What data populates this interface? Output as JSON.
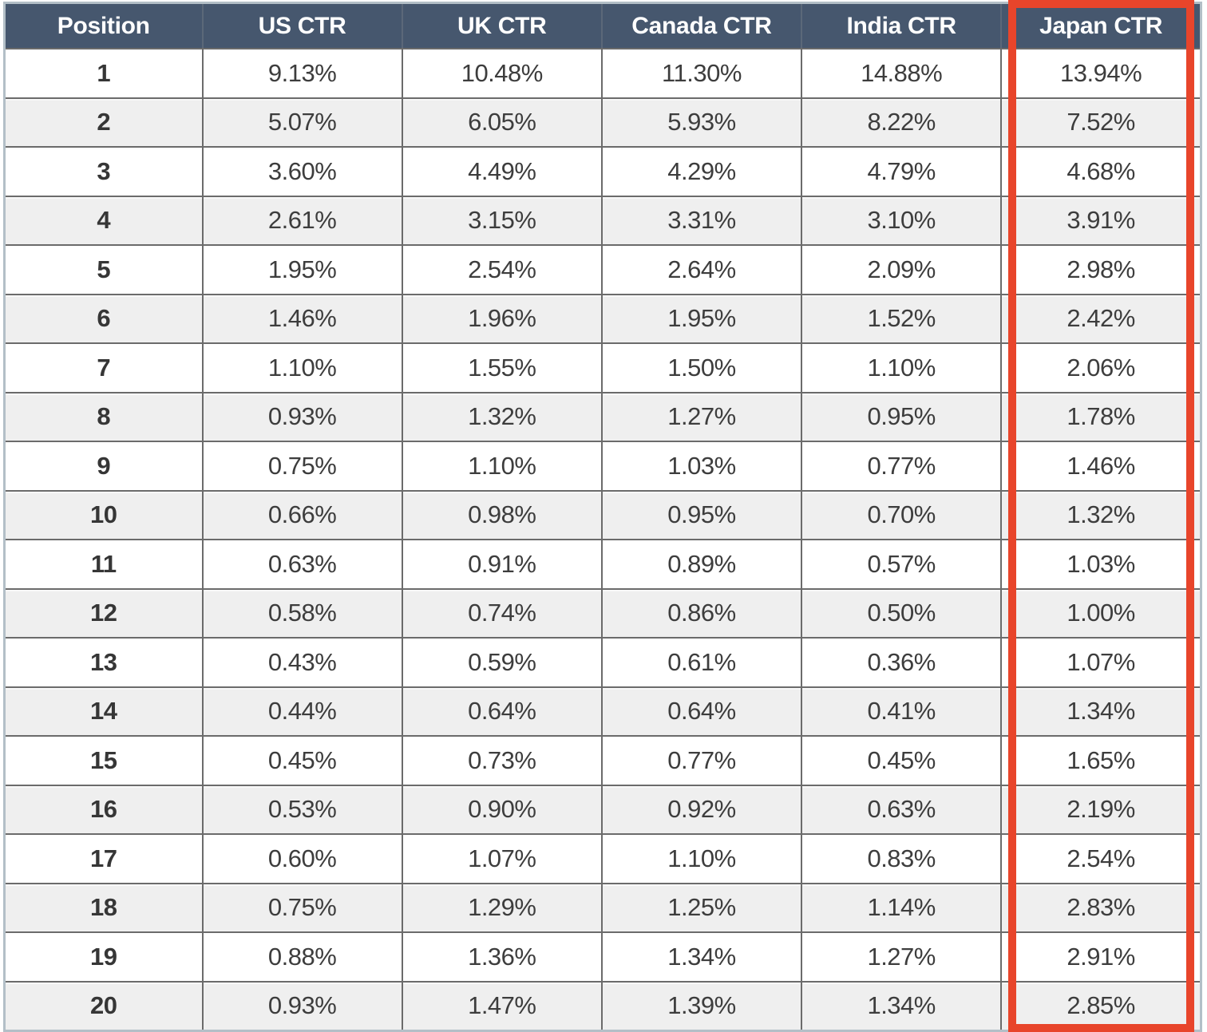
{
  "colors": {
    "header_bg": "#46576e",
    "header_text": "#ffffff",
    "body_text": "#3d3d3d",
    "stripe_bg": "#efefef",
    "row_bg": "#ffffff",
    "grid_line": "#6b6b6b",
    "outer_border": "#b3bfc7",
    "highlight_red": "#e8452b",
    "page_bg": "#ffffff"
  },
  "table": {
    "header": [
      "Position",
      "US CTR",
      "UK CTR",
      "Canada CTR",
      "India CTR",
      "Japan CTR"
    ],
    "highlighted_column": "Japan CTR",
    "rows": [
      [
        "1",
        "9.13%",
        "10.48%",
        "11.30%",
        "14.88%",
        "13.94%"
      ],
      [
        "2",
        "5.07%",
        "6.05%",
        "5.93%",
        "8.22%",
        "7.52%"
      ],
      [
        "3",
        "3.60%",
        "4.49%",
        "4.29%",
        "4.79%",
        "4.68%"
      ],
      [
        "4",
        "2.61%",
        "3.15%",
        "3.31%",
        "3.10%",
        "3.91%"
      ],
      [
        "5",
        "1.95%",
        "2.54%",
        "2.64%",
        "2.09%",
        "2.98%"
      ],
      [
        "6",
        "1.46%",
        "1.96%",
        "1.95%",
        "1.52%",
        "2.42%"
      ],
      [
        "7",
        "1.10%",
        "1.55%",
        "1.50%",
        "1.10%",
        "2.06%"
      ],
      [
        "8",
        "0.93%",
        "1.32%",
        "1.27%",
        "0.95%",
        "1.78%"
      ],
      [
        "9",
        "0.75%",
        "1.10%",
        "1.03%",
        "0.77%",
        "1.46%"
      ],
      [
        "10",
        "0.66%",
        "0.98%",
        "0.95%",
        "0.70%",
        "1.32%"
      ],
      [
        "11",
        "0.63%",
        "0.91%",
        "0.89%",
        "0.57%",
        "1.03%"
      ],
      [
        "12",
        "0.58%",
        "0.74%",
        "0.86%",
        "0.50%",
        "1.00%"
      ],
      [
        "13",
        "0.43%",
        "0.59%",
        "0.61%",
        "0.36%",
        "1.07%"
      ],
      [
        "14",
        "0.44%",
        "0.64%",
        "0.64%",
        "0.41%",
        "1.34%"
      ],
      [
        "15",
        "0.45%",
        "0.73%",
        "0.77%",
        "0.45%",
        "1.65%"
      ],
      [
        "16",
        "0.53%",
        "0.90%",
        "0.92%",
        "0.63%",
        "2.19%"
      ],
      [
        "17",
        "0.60%",
        "1.07%",
        "1.10%",
        "0.83%",
        "2.54%"
      ],
      [
        "18",
        "0.75%",
        "1.29%",
        "1.25%",
        "1.14%",
        "2.83%"
      ],
      [
        "19",
        "0.88%",
        "1.36%",
        "1.34%",
        "1.27%",
        "2.91%"
      ],
      [
        "20",
        "0.93%",
        "1.47%",
        "1.39%",
        "1.34%",
        "2.85%"
      ]
    ]
  },
  "chart_data": {
    "type": "table",
    "columns": [
      "Position",
      "US CTR",
      "UK CTR",
      "Canada CTR",
      "India CTR",
      "Japan CTR"
    ],
    "positions": [
      1,
      2,
      3,
      4,
      5,
      6,
      7,
      8,
      9,
      10,
      11,
      12,
      13,
      14,
      15,
      16,
      17,
      18,
      19,
      20
    ],
    "series": [
      {
        "name": "US CTR",
        "values_percent": [
          9.13,
          5.07,
          3.6,
          2.61,
          1.95,
          1.46,
          1.1,
          0.93,
          0.75,
          0.66,
          0.63,
          0.58,
          0.43,
          0.44,
          0.45,
          0.53,
          0.6,
          0.75,
          0.88,
          0.93
        ]
      },
      {
        "name": "UK CTR",
        "values_percent": [
          10.48,
          6.05,
          4.49,
          3.15,
          2.54,
          1.96,
          1.55,
          1.32,
          1.1,
          0.98,
          0.91,
          0.74,
          0.59,
          0.64,
          0.73,
          0.9,
          1.07,
          1.29,
          1.36,
          1.47
        ]
      },
      {
        "name": "Canada CTR",
        "values_percent": [
          11.3,
          5.93,
          4.29,
          3.31,
          2.64,
          1.95,
          1.5,
          1.27,
          1.03,
          0.95,
          0.89,
          0.86,
          0.61,
          0.64,
          0.77,
          0.92,
          1.1,
          1.25,
          1.34,
          1.39
        ]
      },
      {
        "name": "India CTR",
        "values_percent": [
          14.88,
          8.22,
          4.79,
          3.1,
          2.09,
          1.52,
          1.1,
          0.95,
          0.77,
          0.7,
          0.57,
          0.5,
          0.36,
          0.41,
          0.45,
          0.63,
          0.83,
          1.14,
          1.27,
          1.34
        ]
      },
      {
        "name": "Japan CTR",
        "values_percent": [
          13.94,
          7.52,
          4.68,
          3.91,
          2.98,
          2.42,
          2.06,
          1.78,
          1.46,
          1.32,
          1.03,
          1.0,
          1.07,
          1.34,
          1.65,
          2.19,
          2.54,
          2.83,
          2.91,
          2.85
        ]
      }
    ],
    "highlighted_column": "Japan CTR",
    "annotation": "thick red rectangle drawn around the Japan CTR column"
  }
}
